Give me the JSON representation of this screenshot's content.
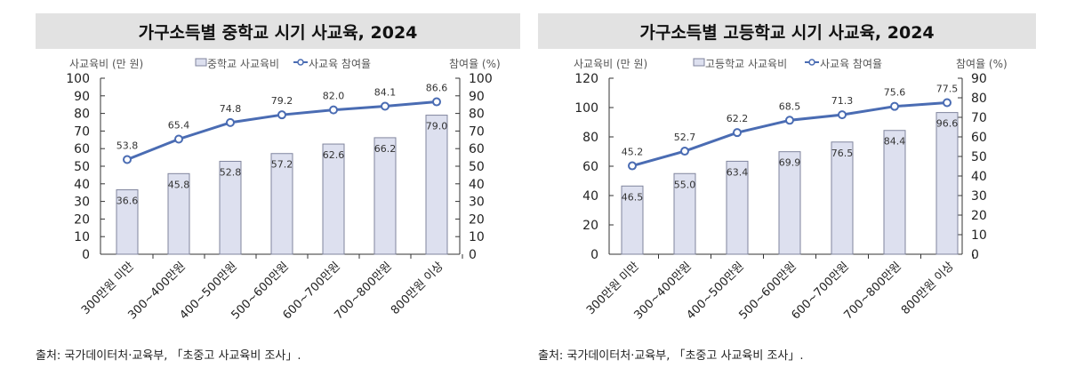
{
  "chart_data": [
    {
      "type": "bar+line",
      "title": "가구소득별 중학교 시기 사교육, 2024",
      "ylabel_left": "사교육비 (만 원)",
      "ylabel_right": "참여율 (%)",
      "categories": [
        "300만원 미만",
        "300~400만원",
        "400~500만원",
        "500~600만원",
        "600~700만원",
        "700~800만원",
        "800만원 이상"
      ],
      "series": [
        {
          "name": "중학교 사교육비",
          "type": "bar",
          "axis": "left",
          "values": [
            36.6,
            45.8,
            52.8,
            57.2,
            62.6,
            66.2,
            79.0
          ]
        },
        {
          "name": "사교육 참여율",
          "type": "line",
          "axis": "right",
          "values": [
            53.8,
            65.4,
            74.8,
            79.2,
            82.0,
            84.1,
            86.6
          ]
        }
      ],
      "ylim_left": [
        0,
        100
      ],
      "yticks_left": [
        0,
        10,
        20,
        30,
        40,
        50,
        60,
        70,
        80,
        90,
        100
      ],
      "ylim_right": [
        0,
        100
      ],
      "yticks_right": [
        0,
        10,
        20,
        30,
        40,
        50,
        60,
        70,
        80,
        90,
        100
      ],
      "legend": "top",
      "grid": false,
      "source": "출처: 국가데이터처·교육부, 「초중고 사교육비 조사」."
    },
    {
      "type": "bar+line",
      "title": "가구소득별 고등학교 시기 사교육, 2024",
      "ylabel_left": "사교육비 (만 원)",
      "ylabel_right": "참여율 (%)",
      "categories": [
        "300만원 미만",
        "300~400만원",
        "400~500만원",
        "500~600만원",
        "600~700만원",
        "700~800만원",
        "800만원 이상"
      ],
      "series": [
        {
          "name": "고등학교 사교육비",
          "type": "bar",
          "axis": "left",
          "values": [
            46.5,
            55.0,
            63.4,
            69.9,
            76.5,
            84.4,
            96.6
          ]
        },
        {
          "name": "사교육 참여율",
          "type": "line",
          "axis": "right",
          "values": [
            45.2,
            52.7,
            62.2,
            68.5,
            71.3,
            75.6,
            77.5
          ]
        }
      ],
      "ylim_left": [
        0,
        120
      ],
      "yticks_left": [
        0,
        20,
        40,
        60,
        80,
        100,
        120
      ],
      "ylim_right": [
        0,
        90
      ],
      "yticks_right": [
        0,
        10,
        20,
        30,
        40,
        50,
        60,
        70,
        80,
        90
      ],
      "legend": "top",
      "grid": false,
      "source": "출처: 국가데이터처·교육부, 「초중고 사교육비 조사」."
    }
  ],
  "colors": {
    "bar_fill": "#dde0ef",
    "bar_stroke": "#80859e",
    "line": "#4a6cb3",
    "title_bg": "#e2e2e2"
  }
}
